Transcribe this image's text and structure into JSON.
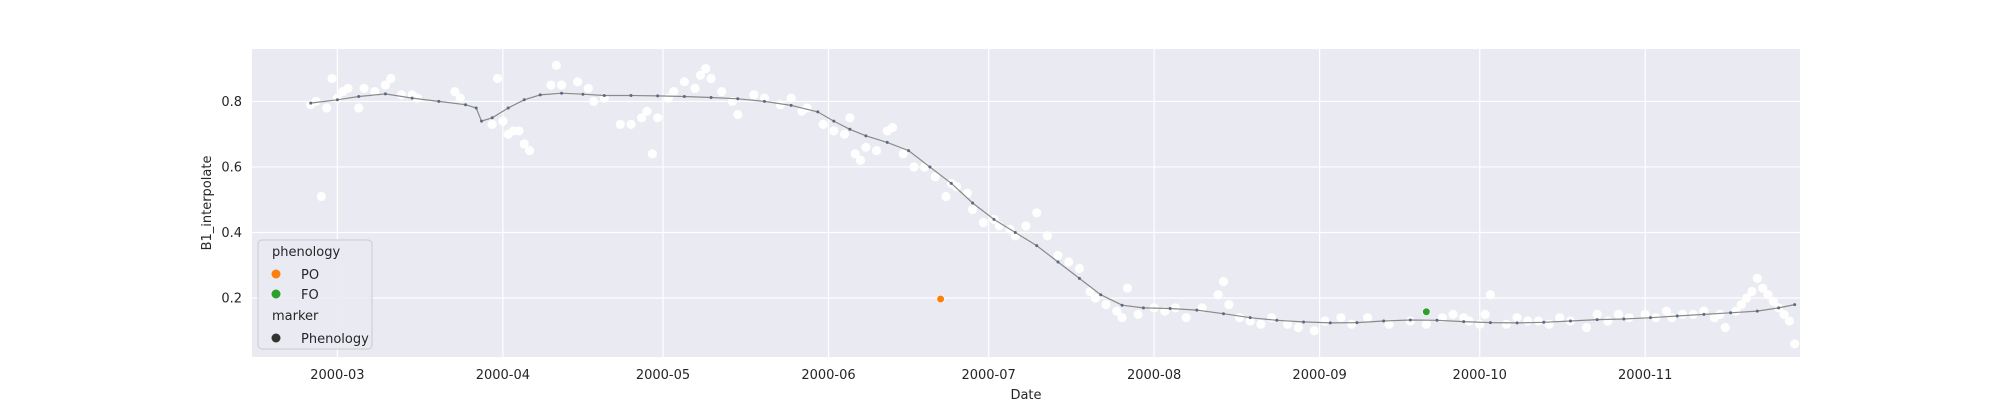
{
  "chart_data": {
    "type": "scatter",
    "title": "",
    "xlabel": "Date",
    "ylabel": "B1_interpolate",
    "x_type": "date",
    "xlim": [
      "2000-02-14",
      "2000-11-30"
    ],
    "ylim": [
      0.02,
      0.96
    ],
    "grid": true,
    "x_ticks": [
      {
        "date": "2000-03-01",
        "label": "2000-03"
      },
      {
        "date": "2000-04-01",
        "label": "2000-04"
      },
      {
        "date": "2000-05-01",
        "label": "2000-05"
      },
      {
        "date": "2000-06-01",
        "label": "2000-06"
      },
      {
        "date": "2000-07-01",
        "label": "2000-07"
      },
      {
        "date": "2000-08-01",
        "label": "2000-08"
      },
      {
        "date": "2000-09-01",
        "label": "2000-09"
      },
      {
        "date": "2000-10-01",
        "label": "2000-10"
      },
      {
        "date": "2000-11-01",
        "label": "2000-11"
      }
    ],
    "y_ticks": [
      {
        "value": 0.2,
        "label": "0.2"
      },
      {
        "value": 0.4,
        "label": "0.4"
      },
      {
        "value": 0.6,
        "label": "0.6"
      },
      {
        "value": 0.8,
        "label": "0.8"
      }
    ],
    "colors": {
      "background": "#eaeaf2",
      "grid": "#ffffff",
      "raw_points": "#ffffff",
      "curve": "#5a6b7b",
      "curve_line": "#8a8a8a",
      "PO": "#ff7f0e",
      "FO": "#2ca02c",
      "marker_phenology": "#333333"
    },
    "legend": {
      "position": "bottom-left",
      "hue_title": "phenology",
      "hue_entries": [
        {
          "label": "PO",
          "color": "#ff7f0e"
        },
        {
          "label": "FO",
          "color": "#2ca02c"
        }
      ],
      "style_title": "marker",
      "style_entries": [
        {
          "label": "Phenology",
          "color": "#333333"
        }
      ]
    },
    "phenology_points": [
      {
        "label": "PO",
        "date": "2000-06-22",
        "value": 0.197
      },
      {
        "label": "FO",
        "date": "2000-09-21",
        "value": 0.158
      }
    ],
    "raw_points": [
      [
        "2000-02-25",
        0.79
      ],
      [
        "2000-02-26",
        0.8
      ],
      [
        "2000-02-28",
        0.78
      ],
      [
        "2000-03-01",
        0.81
      ],
      [
        "2000-02-27",
        0.51
      ],
      [
        "2000-02-29",
        0.87
      ],
      [
        "2000-03-02",
        0.83
      ],
      [
        "2000-03-03",
        0.84
      ],
      [
        "2000-03-05",
        0.78
      ],
      [
        "2000-03-06",
        0.84
      ],
      [
        "2000-03-08",
        0.83
      ],
      [
        "2000-03-10",
        0.85
      ],
      [
        "2000-03-11",
        0.87
      ],
      [
        "2000-03-13",
        0.82
      ],
      [
        "2000-03-15",
        0.82
      ],
      [
        "2000-03-16",
        0.81
      ],
      [
        "2000-03-23",
        0.83
      ],
      [
        "2000-03-24",
        0.81
      ],
      [
        "2000-03-30",
        0.73
      ],
      [
        "2000-03-31",
        0.87
      ],
      [
        "2000-04-01",
        0.74
      ],
      [
        "2000-04-02",
        0.7
      ],
      [
        "2000-04-03",
        0.71
      ],
      [
        "2000-04-04",
        0.71
      ],
      [
        "2000-04-05",
        0.67
      ],
      [
        "2000-04-06",
        0.65
      ],
      [
        "2000-04-10",
        0.85
      ],
      [
        "2000-04-11",
        0.91
      ],
      [
        "2000-04-12",
        0.85
      ],
      [
        "2000-04-15",
        0.86
      ],
      [
        "2000-04-17",
        0.84
      ],
      [
        "2000-04-18",
        0.8
      ],
      [
        "2000-04-20",
        0.81
      ],
      [
        "2000-04-23",
        0.73
      ],
      [
        "2000-04-25",
        0.73
      ],
      [
        "2000-04-27",
        0.75
      ],
      [
        "2000-04-28",
        0.77
      ],
      [
        "2000-04-29",
        0.64
      ],
      [
        "2000-04-30",
        0.75
      ],
      [
        "2000-05-02",
        0.81
      ],
      [
        "2000-05-03",
        0.83
      ],
      [
        "2000-05-05",
        0.86
      ],
      [
        "2000-05-07",
        0.84
      ],
      [
        "2000-05-08",
        0.88
      ],
      [
        "2000-05-09",
        0.9
      ],
      [
        "2000-05-10",
        0.87
      ],
      [
        "2000-05-12",
        0.83
      ],
      [
        "2000-05-14",
        0.8
      ],
      [
        "2000-05-15",
        0.76
      ],
      [
        "2000-05-18",
        0.82
      ],
      [
        "2000-05-20",
        0.81
      ],
      [
        "2000-05-23",
        0.79
      ],
      [
        "2000-05-25",
        0.81
      ],
      [
        "2000-05-27",
        0.77
      ],
      [
        "2000-05-28",
        0.78
      ],
      [
        "2000-05-31",
        0.73
      ],
      [
        "2000-06-02",
        0.71
      ],
      [
        "2000-06-04",
        0.7
      ],
      [
        "2000-06-05",
        0.75
      ],
      [
        "2000-06-06",
        0.64
      ],
      [
        "2000-06-07",
        0.62
      ],
      [
        "2000-06-08",
        0.66
      ],
      [
        "2000-06-10",
        0.65
      ],
      [
        "2000-06-12",
        0.71
      ],
      [
        "2000-06-13",
        0.72
      ],
      [
        "2000-06-15",
        0.64
      ],
      [
        "2000-06-17",
        0.6
      ],
      [
        "2000-06-19",
        0.6
      ],
      [
        "2000-06-21",
        0.57
      ],
      [
        "2000-06-23",
        0.51
      ],
      [
        "2000-06-24",
        0.55
      ],
      [
        "2000-06-25",
        0.54
      ],
      [
        "2000-06-27",
        0.52
      ],
      [
        "2000-06-28",
        0.47
      ],
      [
        "2000-06-30",
        0.43
      ],
      [
        "2000-07-02",
        0.44
      ],
      [
        "2000-07-03",
        0.42
      ],
      [
        "2000-07-05",
        0.41
      ],
      [
        "2000-07-06",
        0.39
      ],
      [
        "2000-07-08",
        0.42
      ],
      [
        "2000-07-10",
        0.46
      ],
      [
        "2000-07-12",
        0.39
      ],
      [
        "2000-07-14",
        0.33
      ],
      [
        "2000-07-16",
        0.31
      ],
      [
        "2000-07-18",
        0.29
      ],
      [
        "2000-07-20",
        0.22
      ],
      [
        "2000-07-21",
        0.2
      ],
      [
        "2000-07-23",
        0.18
      ],
      [
        "2000-07-25",
        0.16
      ],
      [
        "2000-07-26",
        0.14
      ],
      [
        "2000-07-27",
        0.23
      ],
      [
        "2000-07-29",
        0.15
      ],
      [
        "2000-08-01",
        0.17
      ],
      [
        "2000-08-03",
        0.16
      ],
      [
        "2000-08-05",
        0.17
      ],
      [
        "2000-08-07",
        0.14
      ],
      [
        "2000-08-10",
        0.17
      ],
      [
        "2000-08-13",
        0.21
      ],
      [
        "2000-08-14",
        0.25
      ],
      [
        "2000-08-15",
        0.18
      ],
      [
        "2000-08-17",
        0.14
      ],
      [
        "2000-08-19",
        0.13
      ],
      [
        "2000-08-21",
        0.12
      ],
      [
        "2000-08-23",
        0.14
      ],
      [
        "2000-08-26",
        0.12
      ],
      [
        "2000-08-28",
        0.11
      ],
      [
        "2000-08-31",
        0.1
      ],
      [
        "2000-09-02",
        0.13
      ],
      [
        "2000-09-05",
        0.14
      ],
      [
        "2000-09-07",
        0.12
      ],
      [
        "2000-09-10",
        0.14
      ],
      [
        "2000-09-14",
        0.12
      ],
      [
        "2000-09-18",
        0.13
      ],
      [
        "2000-09-21",
        0.12
      ],
      [
        "2000-09-24",
        0.14
      ],
      [
        "2000-09-26",
        0.15
      ],
      [
        "2000-09-28",
        0.14
      ],
      [
        "2000-09-29",
        0.13
      ],
      [
        "2000-10-01",
        0.12
      ],
      [
        "2000-10-02",
        0.15
      ],
      [
        "2000-10-03",
        0.21
      ],
      [
        "2000-10-06",
        0.12
      ],
      [
        "2000-10-08",
        0.14
      ],
      [
        "2000-10-10",
        0.13
      ],
      [
        "2000-10-12",
        0.13
      ],
      [
        "2000-10-14",
        0.12
      ],
      [
        "2000-10-16",
        0.14
      ],
      [
        "2000-10-18",
        0.13
      ],
      [
        "2000-10-21",
        0.11
      ],
      [
        "2000-10-23",
        0.15
      ],
      [
        "2000-10-25",
        0.13
      ],
      [
        "2000-10-27",
        0.15
      ],
      [
        "2000-10-29",
        0.14
      ],
      [
        "2000-11-01",
        0.15
      ],
      [
        "2000-11-03",
        0.14
      ],
      [
        "2000-11-05",
        0.16
      ],
      [
        "2000-11-06",
        0.14
      ],
      [
        "2000-11-08",
        0.15
      ],
      [
        "2000-11-10",
        0.15
      ],
      [
        "2000-11-12",
        0.16
      ],
      [
        "2000-11-14",
        0.14
      ],
      [
        "2000-11-15",
        0.15
      ],
      [
        "2000-11-16",
        0.11
      ],
      [
        "2000-11-18",
        0.16
      ],
      [
        "2000-11-19",
        0.18
      ],
      [
        "2000-11-20",
        0.2
      ],
      [
        "2000-11-21",
        0.22
      ],
      [
        "2000-11-22",
        0.26
      ],
      [
        "2000-11-23",
        0.23
      ],
      [
        "2000-11-24",
        0.21
      ],
      [
        "2000-11-25",
        0.19
      ],
      [
        "2000-11-26",
        0.17
      ],
      [
        "2000-11-27",
        0.15
      ],
      [
        "2000-11-28",
        0.13
      ],
      [
        "2000-11-29",
        0.06
      ]
    ],
    "smoothed_curve": [
      [
        "2000-02-25",
        0.795
      ],
      [
        "2000-03-01",
        0.805
      ],
      [
        "2000-03-05",
        0.815
      ],
      [
        "2000-03-10",
        0.823
      ],
      [
        "2000-03-15",
        0.81
      ],
      [
        "2000-03-20",
        0.8
      ],
      [
        "2000-03-25",
        0.79
      ],
      [
        "2000-03-27",
        0.78
      ],
      [
        "2000-03-28",
        0.74
      ],
      [
        "2000-03-30",
        0.75
      ],
      [
        "2000-04-02",
        0.78
      ],
      [
        "2000-04-05",
        0.805
      ],
      [
        "2000-04-08",
        0.82
      ],
      [
        "2000-04-12",
        0.825
      ],
      [
        "2000-04-16",
        0.822
      ],
      [
        "2000-04-20",
        0.818
      ],
      [
        "2000-04-25",
        0.818
      ],
      [
        "2000-04-30",
        0.817
      ],
      [
        "2000-05-05",
        0.815
      ],
      [
        "2000-05-10",
        0.812
      ],
      [
        "2000-05-15",
        0.808
      ],
      [
        "2000-05-20",
        0.8
      ],
      [
        "2000-05-25",
        0.788
      ],
      [
        "2000-05-30",
        0.768
      ],
      [
        "2000-06-02",
        0.74
      ],
      [
        "2000-06-05",
        0.715
      ],
      [
        "2000-06-08",
        0.695
      ],
      [
        "2000-06-12",
        0.675
      ],
      [
        "2000-06-16",
        0.65
      ],
      [
        "2000-06-20",
        0.6
      ],
      [
        "2000-06-24",
        0.55
      ],
      [
        "2000-06-28",
        0.49
      ],
      [
        "2000-07-02",
        0.44
      ],
      [
        "2000-07-06",
        0.4
      ],
      [
        "2000-07-10",
        0.36
      ],
      [
        "2000-07-14",
        0.31
      ],
      [
        "2000-07-18",
        0.26
      ],
      [
        "2000-07-22",
        0.21
      ],
      [
        "2000-07-26",
        0.178
      ],
      [
        "2000-07-30",
        0.17
      ],
      [
        "2000-08-04",
        0.168
      ],
      [
        "2000-08-09",
        0.163
      ],
      [
        "2000-08-14",
        0.152
      ],
      [
        "2000-08-19",
        0.14
      ],
      [
        "2000-08-24",
        0.132
      ],
      [
        "2000-08-29",
        0.127
      ],
      [
        "2000-09-03",
        0.124
      ],
      [
        "2000-09-08",
        0.125
      ],
      [
        "2000-09-13",
        0.13
      ],
      [
        "2000-09-18",
        0.133
      ],
      [
        "2000-09-23",
        0.132
      ],
      [
        "2000-09-28",
        0.128
      ],
      [
        "2000-10-03",
        0.125
      ],
      [
        "2000-10-08",
        0.124
      ],
      [
        "2000-10-13",
        0.126
      ],
      [
        "2000-10-18",
        0.13
      ],
      [
        "2000-10-23",
        0.134
      ],
      [
        "2000-10-28",
        0.136
      ],
      [
        "2000-11-02",
        0.14
      ],
      [
        "2000-11-07",
        0.145
      ],
      [
        "2000-11-12",
        0.15
      ],
      [
        "2000-11-17",
        0.155
      ],
      [
        "2000-11-22",
        0.16
      ],
      [
        "2000-11-26",
        0.17
      ],
      [
        "2000-11-29",
        0.18
      ]
    ]
  }
}
